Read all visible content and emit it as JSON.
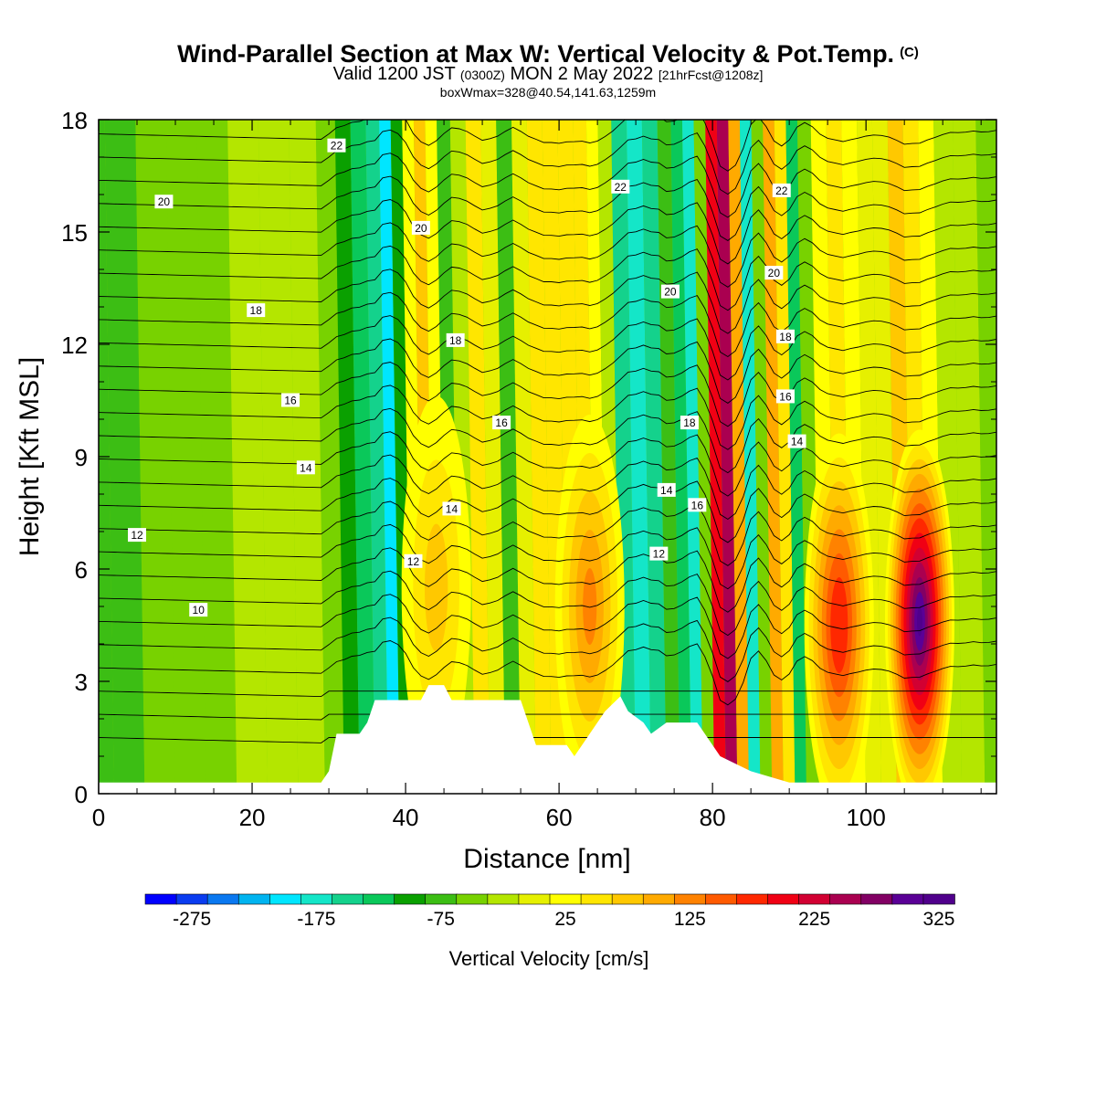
{
  "header": {
    "title": "Wind-Parallel Section at Max W: Vertical Velocity & Pot.Temp.",
    "copyright_mark": "(C)",
    "valid_prefix": "Valid 1200 JST",
    "valid_utc": "(0300Z)",
    "valid_date": "MON 2 May 2022",
    "forecast_info": "[21hrFcst@1208z]",
    "box_info": "boxWmax=328@40.54,141.63,1259m"
  },
  "chart_data": {
    "type": "heatmap",
    "xlabel": "Distance [nm]",
    "ylabel": "Height [Kft MSL]",
    "xlim": [
      0,
      117
    ],
    "ylim": [
      0,
      18
    ],
    "x_ticks": [
      0,
      20,
      40,
      60,
      80,
      100
    ],
    "y_ticks": [
      0,
      3,
      6,
      9,
      12,
      15,
      18
    ],
    "colorbar": {
      "label": "Vertical Velocity [cm/s]",
      "tick_labels": [
        "-275",
        "-175",
        "-75",
        "25",
        "125",
        "225",
        "325"
      ],
      "tick_values": [
        -275,
        -175,
        -75,
        25,
        125,
        225,
        325
      ],
      "min": -300,
      "max": 350,
      "step": 25,
      "colors": [
        "#0000ff",
        "#0a3cf0",
        "#0a78f0",
        "#00b4f0",
        "#00e6ff",
        "#14e6c8",
        "#14d28c",
        "#0ac85a",
        "#0aa000",
        "#3cbe14",
        "#78d200",
        "#b4e600",
        "#e6f000",
        "#ffff00",
        "#ffe600",
        "#ffc800",
        "#ffaa00",
        "#ff8200",
        "#ff5a00",
        "#ff2800",
        "#f00014",
        "#d20032",
        "#aa0050",
        "#820064",
        "#5a0096",
        "#50008c"
      ]
    },
    "velocity_columns": [
      {
        "x": 0,
        "w": -55
      },
      {
        "x": 4,
        "w": -55
      },
      {
        "x": 8,
        "w": -50
      },
      {
        "x": 12,
        "w": -45
      },
      {
        "x": 16,
        "w": -35
      },
      {
        "x": 20,
        "w": -10
      },
      {
        "x": 24,
        "w": -15
      },
      {
        "x": 28,
        "w": -25
      },
      {
        "x": 31,
        "w": -45
      },
      {
        "x": 33,
        "w": -85
      },
      {
        "x": 35,
        "w": -110
      },
      {
        "x": 37,
        "w": -150
      },
      {
        "x": 38.5,
        "w": -185
      },
      {
        "x": 40,
        "w": -80
      },
      {
        "x": 41.5,
        "w": 45
      },
      {
        "x": 43,
        "w": 75
      },
      {
        "x": 44.5,
        "w": 30
      },
      {
        "x": 46,
        "w": -60
      },
      {
        "x": 48,
        "w": -20
      },
      {
        "x": 50,
        "w": 55
      },
      {
        "x": 52,
        "w": 20
      },
      {
        "x": 54,
        "w": -60
      },
      {
        "x": 56,
        "w": 20
      },
      {
        "x": 58,
        "w": 65
      },
      {
        "x": 60,
        "w": 70
      },
      {
        "x": 62,
        "w": 55
      },
      {
        "x": 64,
        "w": 60
      },
      {
        "x": 65.5,
        "w": 40
      },
      {
        "x": 67,
        "w": -25
      },
      {
        "x": 69,
        "w": -130
      },
      {
        "x": 71,
        "w": -155
      },
      {
        "x": 73,
        "w": -130
      },
      {
        "x": 75,
        "w": -60
      },
      {
        "x": 76.5,
        "w": -120
      },
      {
        "x": 78,
        "w": -155
      },
      {
        "x": 79.5,
        "w": -40
      },
      {
        "x": 81,
        "w": 210
      },
      {
        "x": 82.5,
        "w": 250
      },
      {
        "x": 84,
        "w": 100
      },
      {
        "x": 85.5,
        "w": -170
      },
      {
        "x": 87,
        "w": -40
      },
      {
        "x": 88.5,
        "w": 100
      },
      {
        "x": 90,
        "w": 55
      },
      {
        "x": 91.5,
        "w": -110
      },
      {
        "x": 93,
        "w": -30
      },
      {
        "x": 95,
        "w": 35
      },
      {
        "x": 97,
        "w": 60
      },
      {
        "x": 99,
        "w": 30
      },
      {
        "x": 101,
        "w": 5
      },
      {
        "x": 103,
        "w": 20
      },
      {
        "x": 105,
        "w": 80
      },
      {
        "x": 107,
        "w": 70
      },
      {
        "x": 109,
        "w": 25
      },
      {
        "x": 111,
        "w": -15
      },
      {
        "x": 114,
        "w": -25
      },
      {
        "x": 117,
        "w": -30
      }
    ],
    "updraft_cores": [
      {
        "x": 107,
        "z": 4.6,
        "w": 328
      },
      {
        "x": 96.5,
        "z": 4.5,
        "w": 195
      },
      {
        "x": 64,
        "z": 5.0,
        "w": 130
      },
      {
        "x": 44,
        "z": 5.5,
        "w": 75
      }
    ],
    "terrain": [
      {
        "x": 0,
        "z": 0.3
      },
      {
        "x": 29,
        "z": 0.3
      },
      {
        "x": 30,
        "z": 0.6
      },
      {
        "x": 31,
        "z": 1.6
      },
      {
        "x": 34,
        "z": 1.6
      },
      {
        "x": 35,
        "z": 1.9
      },
      {
        "x": 36,
        "z": 2.5
      },
      {
        "x": 42,
        "z": 2.5
      },
      {
        "x": 43,
        "z": 2.9
      },
      {
        "x": 45,
        "z": 2.9
      },
      {
        "x": 46,
        "z": 2.5
      },
      {
        "x": 55,
        "z": 2.5
      },
      {
        "x": 56,
        "z": 1.9
      },
      {
        "x": 57,
        "z": 1.3
      },
      {
        "x": 61,
        "z": 1.3
      },
      {
        "x": 62,
        "z": 1.0
      },
      {
        "x": 63,
        "z": 1.3
      },
      {
        "x": 64,
        "z": 1.6
      },
      {
        "x": 66,
        "z": 2.2
      },
      {
        "x": 68,
        "z": 2.6
      },
      {
        "x": 69,
        "z": 2.2
      },
      {
        "x": 71,
        "z": 1.9
      },
      {
        "x": 72,
        "z": 1.6
      },
      {
        "x": 74,
        "z": 1.9
      },
      {
        "x": 78,
        "z": 1.9
      },
      {
        "x": 79,
        "z": 1.6
      },
      {
        "x": 81,
        "z": 1.0
      },
      {
        "x": 85,
        "z": 0.6
      },
      {
        "x": 90,
        "z": 0.3
      },
      {
        "x": 117,
        "z": 0.3
      }
    ],
    "theta_labels": [
      {
        "text": "22",
        "x": 31,
        "z": 17.3
      },
      {
        "text": "20",
        "x": 8.5,
        "z": 15.8
      },
      {
        "text": "20",
        "x": 42,
        "z": 15.1
      },
      {
        "text": "18",
        "x": 20.5,
        "z": 12.9
      },
      {
        "text": "18",
        "x": 46.5,
        "z": 12.1
      },
      {
        "text": "16",
        "x": 25,
        "z": 10.5
      },
      {
        "text": "16",
        "x": 52.5,
        "z": 9.9
      },
      {
        "text": "14",
        "x": 27,
        "z": 8.7
      },
      {
        "text": "14",
        "x": 46,
        "z": 7.6
      },
      {
        "text": "12",
        "x": 5,
        "z": 6.9
      },
      {
        "text": "12",
        "x": 41,
        "z": 6.2
      },
      {
        "text": "12",
        "x": 73,
        "z": 6.4
      },
      {
        "text": "10",
        "x": 13,
        "z": 4.9
      },
      {
        "text": "22",
        "x": 68,
        "z": 16.2
      },
      {
        "text": "20",
        "x": 74.5,
        "z": 13.4
      },
      {
        "text": "18",
        "x": 77,
        "z": 9.9
      },
      {
        "text": "14",
        "x": 74,
        "z": 8.1
      },
      {
        "text": "16",
        "x": 78,
        "z": 7.7
      },
      {
        "text": "22",
        "x": 89,
        "z": 16.1
      },
      {
        "text": "20",
        "x": 88,
        "z": 13.9
      },
      {
        "text": "18",
        "x": 89.5,
        "z": 12.2
      },
      {
        "text": "16",
        "x": 89.5,
        "z": 10.6
      },
      {
        "text": "14",
        "x": 91,
        "z": 9.4
      }
    ]
  }
}
